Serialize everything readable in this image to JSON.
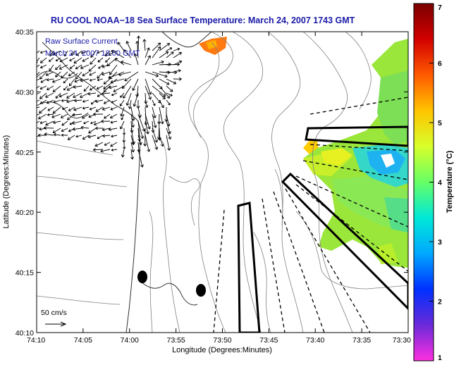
{
  "title": "RU COOL  NOAA−18  Sea Surface Temperature:  March 24, 2007 1743 GMT",
  "overlay": {
    "line1": "Raw Surface Current",
    "line2": "March 24, 2007 18:00 GMT"
  },
  "scale": {
    "label": "50 cm/s"
  },
  "axes": {
    "xlabel": "Longitude (Degrees:Minutes)",
    "ylabel": "Latitude (Degrees:Minutes)",
    "xticks": [
      "74:10",
      "74:05",
      "74:00",
      "73:55",
      "73:50",
      "73:45",
      "73:40",
      "73:35",
      "73:30"
    ],
    "yticks": [
      "40:35",
      "40:30",
      "40:25",
      "40:20",
      "40:15",
      "40:10"
    ]
  },
  "colorbar": {
    "label": "Temperature (°C)",
    "min": 1,
    "max": 7,
    "ticks": [
      "7",
      "6",
      "5",
      "4",
      "3",
      "2",
      "1"
    ],
    "colors": [
      "#7a0000",
      "#d20000",
      "#ff5a00",
      "#ffc400",
      "#d8ff2a",
      "#66ff66",
      "#00e8d8",
      "#00a8ff",
      "#0030ff",
      "#6a2ad8",
      "#ff30e0"
    ]
  }
}
